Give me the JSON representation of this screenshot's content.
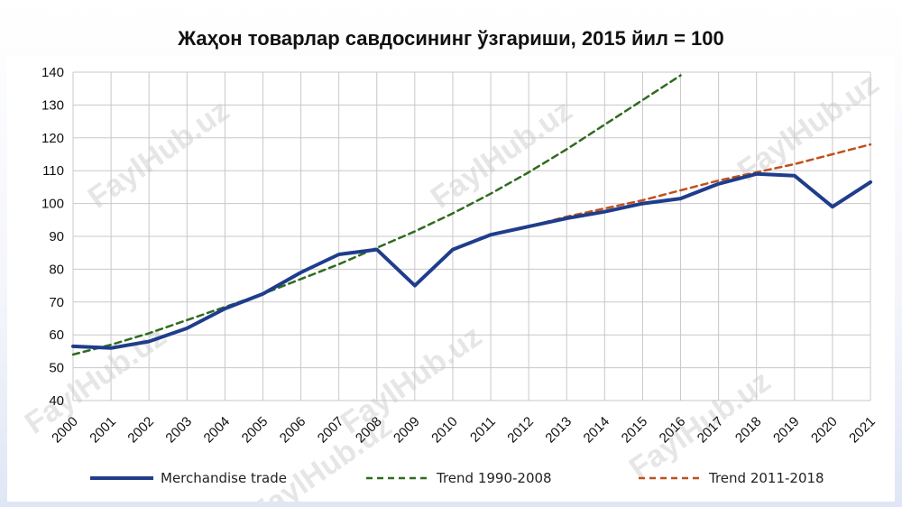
{
  "title": "Жаҳон товарлар савдосининг ўзгариши, 2015 йил = 100",
  "watermark": "FaylHub.uz",
  "colors": {
    "merchandise": "#1f3d8c",
    "trend_1990_2008": "#2f6b1f",
    "trend_2011_2018": "#c0501a",
    "grid": "#c8c8c8"
  },
  "chart_data": {
    "type": "line",
    "title": "Жаҳон товарлар савдосининг ўзгариши, 2015 йил = 100",
    "xlabel": "",
    "ylabel": "",
    "ylim": [
      40,
      140
    ],
    "yticks": [
      40,
      50,
      60,
      70,
      80,
      90,
      100,
      110,
      120,
      130,
      140
    ],
    "categories": [
      "2000",
      "2001",
      "2002",
      "2003",
      "2004",
      "2005",
      "2006",
      "2007",
      "2008",
      "2009",
      "2010",
      "2011",
      "2012",
      "2013",
      "2014",
      "2015",
      "2016",
      "2017",
      "2018",
      "2019",
      "2020",
      "2021"
    ],
    "grid": true,
    "legend_position": "bottom",
    "series": [
      {
        "name": "Merchandise trade",
        "style": "solid",
        "values": [
          56.5,
          56,
          58,
          62,
          68,
          72.5,
          79,
          84.5,
          86,
          75,
          86,
          90.5,
          93,
          95.5,
          97.5,
          100,
          101.5,
          106,
          109,
          108.5,
          99,
          106.5
        ]
      },
      {
        "name": "Trend 1990-2008",
        "style": "dashed",
        "values": [
          54,
          57,
          60.5,
          64.5,
          68.5,
          72.5,
          77,
          81.5,
          86.5,
          91.5,
          97,
          103,
          109.5,
          116.5,
          124,
          131.5,
          139,
          null,
          null,
          null,
          null,
          null
        ]
      },
      {
        "name": "Trend 2011-2018",
        "style": "dashed",
        "values": [
          null,
          null,
          null,
          null,
          null,
          null,
          null,
          null,
          null,
          null,
          null,
          90.5,
          93,
          96,
          98.5,
          101,
          104,
          107,
          109.5,
          112,
          115,
          118
        ]
      }
    ]
  }
}
